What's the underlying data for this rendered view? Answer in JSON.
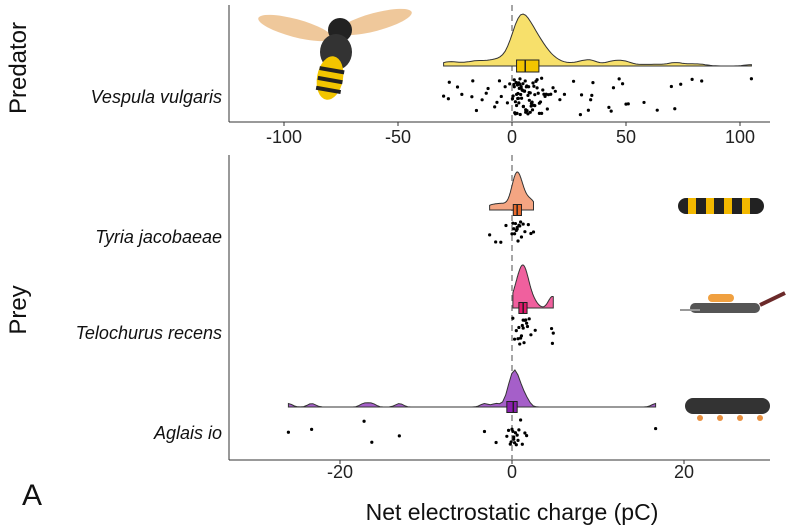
{
  "chart_data": {
    "type": "raincloud",
    "panel_label": "A",
    "xlabel": "Net electrostatic charge (pC)",
    "reference_line": 0,
    "colors": {
      "Vespula vulgaris": "#F7E06B",
      "Tyria jacobaeae": "#F4A582",
      "Telochurus recens": "#F0609E",
      "Aglais io": "#A55FC9"
    },
    "box_colors": {
      "Vespula vulgaris": "#F2C500",
      "Tyria jacobaeae": "#E8692A",
      "Telochurus recens": "#E0196B",
      "Aglais io": "#8A1FAE"
    },
    "facets": [
      {
        "name": "Predator",
        "xlim": [
          -120,
          115
        ],
        "xticks": [
          -100,
          -50,
          0,
          50,
          100
        ],
        "groups": [
          {
            "species": "Vespula vulgaris",
            "box": {
              "q1": 2,
              "median": 5.8,
              "q3": 11.8
            },
            "points": [
              -30,
              -27.9,
              -27.5,
              -23.9,
              -22,
              -17.6,
              -17.2,
              -15.6,
              -13.1,
              -11.3,
              -10.5,
              -7.6,
              -6.6,
              -5.5,
              -4.7,
              -3,
              -2,
              -1,
              0.2,
              0.5,
              0.8,
              1,
              1.2,
              1.5,
              1.8,
              2,
              2.2,
              2.4,
              2.6,
              2.8,
              3,
              3.2,
              3.4,
              3.6,
              3.8,
              4,
              4.2,
              4.5,
              4.8,
              5,
              5.2,
              5.5,
              5.8,
              6,
              6.3,
              6.6,
              7,
              7.3,
              7.6,
              8,
              8.4,
              8.8,
              9.2,
              9.6,
              10,
              10.5,
              11,
              11.5,
              12,
              12.5,
              13,
              13.5,
              14,
              14.5,
              15,
              15.5,
              16,
              17,
              18,
              1,
              2,
              3,
              4,
              5,
              6,
              7,
              8,
              9,
              10,
              1.5,
              2.5,
              3.5,
              4.5,
              5.5,
              6.5,
              7.5,
              8.5,
              9.5,
              11,
              12,
              13,
              19,
              21,
              23,
              27,
              30,
              30.5,
              33.5,
              34.5,
              35,
              35.5,
              42.5,
              43.5,
              44.5,
              47,
              48.5,
              50,
              51,
              57.9,
              63.7,
              69.9,
              71.4,
              74,
              79,
              83.2,
              105
            ]
          }
        ]
      },
      {
        "name": "Prey",
        "xlim": [
          -33,
          33
        ],
        "xticks": [
          -20,
          0,
          20
        ],
        "groups": [
          {
            "species": "Tyria jacobaeae",
            "box": {
              "q1": 0.15,
              "median": 0.6,
              "q3": 1.1
            },
            "points": [
              -2.6,
              -1.9,
              -1.3,
              -0.7,
              0,
              0.1,
              0.2,
              0.3,
              0.4,
              0.5,
              0.6,
              0.6,
              0.7,
              0.8,
              0.9,
              1.0,
              1.1,
              1.3,
              1.5,
              1.9,
              2.2,
              2.5
            ]
          },
          {
            "species": "Telochurus recens",
            "box": {
              "q1": 0.8,
              "median": 1.3,
              "q3": 1.75
            },
            "points": [
              0.1,
              0.3,
              0.5,
              0.7,
              0.8,
              0.9,
              1.0,
              1.1,
              1.2,
              1.3,
              1.3,
              1.4,
              1.5,
              1.6,
              1.7,
              1.8,
              2.0,
              2.2,
              2.7,
              4.6,
              4.8,
              4.7
            ]
          },
          {
            "species": "Aglais io",
            "box": {
              "q1": -0.6,
              "median": 0.15,
              "q3": 0.6
            },
            "points": [
              -26,
              -23.3,
              -17.2,
              -16.3,
              -13.1,
              -3.2,
              -1.85,
              -0.6,
              -0.4,
              -0.2,
              -0.1,
              0,
              0.1,
              0.2,
              0.2,
              0.3,
              0.4,
              0.5,
              0.6,
              0.7,
              0.8,
              1.0,
              1.2,
              1.5,
              1.7,
              16.7
            ]
          }
        ]
      }
    ]
  }
}
